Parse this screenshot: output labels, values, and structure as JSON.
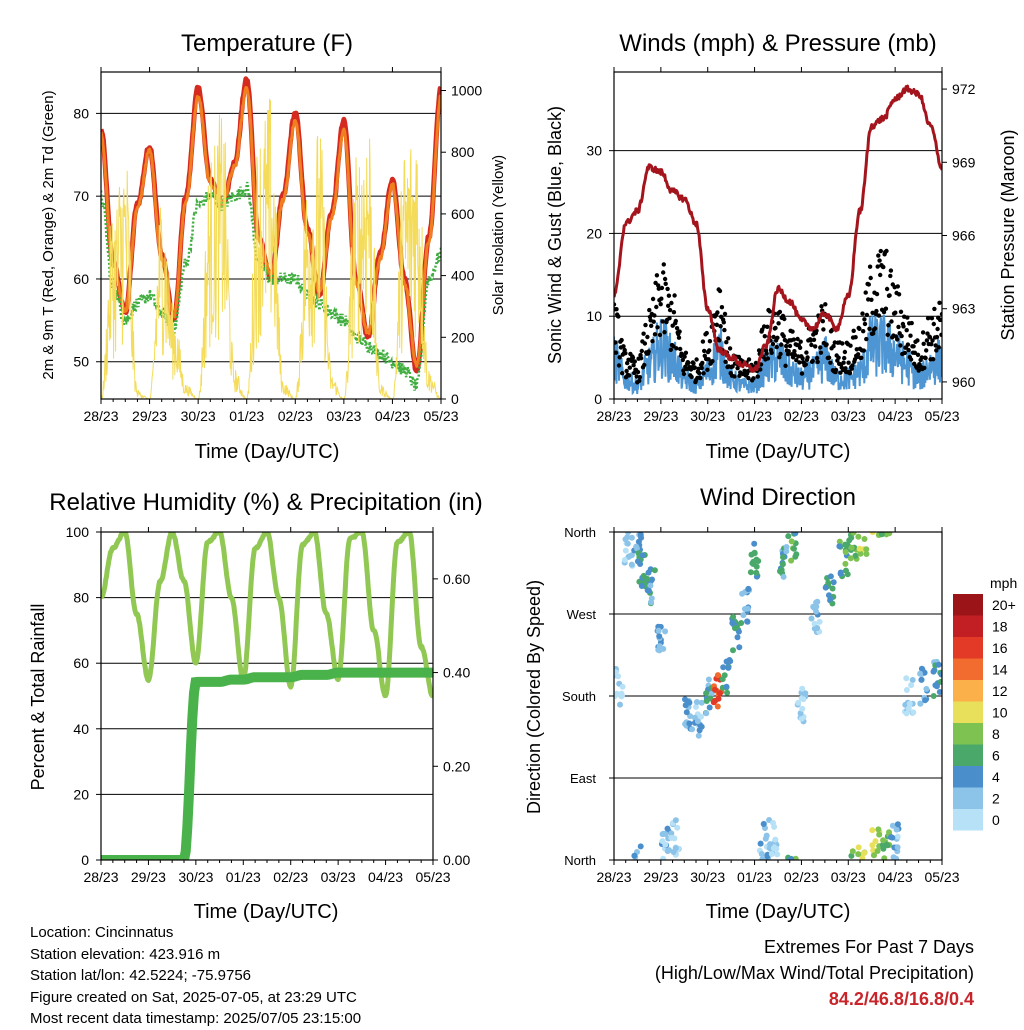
{
  "colors": {
    "temp_2m": "#d42a20",
    "temp_9m": "#f07f20",
    "dewpoint": "#3fae3f",
    "solar": "#f4dc5a",
    "wind": "#4d96d3",
    "gust": "#000000",
    "pressure": "#a3141c",
    "rh": "#90c853",
    "precip": "#4ab24a",
    "extremes": "#c8242a"
  },
  "temperature": {
    "title": "Temperature (F)",
    "xlabel": "Time (Day/UTC)",
    "ylabel_left": "2m & 9m T (Red, Orange) & 2m Td (Green)",
    "ylabel_right": "Solar Insolation (Yellow)",
    "yticks_left": [
      "50",
      "60",
      "70",
      "80"
    ],
    "yticks_right": [
      "0",
      "200",
      "400",
      "600",
      "800",
      "1000"
    ]
  },
  "winds": {
    "title": "Winds (mph) & Pressure (mb)",
    "xlabel": "Time (Day/UTC)",
    "ylabel_left": "Sonic Wind & Gust (Blue, Black)",
    "ylabel_right": "Station Pressure (Maroon)",
    "yticks_left": [
      "0",
      "10",
      "20",
      "30"
    ],
    "yticks_right": [
      "960",
      "963",
      "966",
      "969",
      "972"
    ]
  },
  "humidity": {
    "title": "Relative Humidity (%) & Precipitation (in)",
    "xlabel": "Time (Day/UTC)",
    "ylabel_left": "Percent & Total Rainfall",
    "yticks_left": [
      "0",
      "20",
      "40",
      "60",
      "80",
      "100"
    ],
    "yticks_right": [
      "0.00",
      "0.20",
      "0.40",
      "0.60"
    ]
  },
  "direction": {
    "title": "Wind Direction",
    "xlabel": "Time (Day/UTC)",
    "ylabel_left": "Direction (Colored By Speed)",
    "yticks_left": [
      "North",
      "East",
      "South",
      "West",
      "North"
    ],
    "legend_title": "mph",
    "legend_labels": [
      "0",
      "2",
      "4",
      "6",
      "8",
      "10",
      "12",
      "14",
      "16",
      "18",
      "20+"
    ],
    "legend_colors": [
      "#b7e1f6",
      "#8cc3e8",
      "#4a8fcb",
      "#4aa96a",
      "#7ec251",
      "#e8e05a",
      "#fbb04a",
      "#f26b2f",
      "#e23a26",
      "#c21f24",
      "#9b1418"
    ]
  },
  "xticks": [
    "28/23",
    "29/23",
    "30/23",
    "01/23",
    "02/23",
    "03/23",
    "04/23",
    "05/23"
  ],
  "info": {
    "location": "Location: Cincinnatus",
    "elevation": "Station elevation: 423.916 m",
    "latlon": "Station lat/lon: 42.5224; -75.9756",
    "created": "Figure created on Sat, 2025-07-05, at 23:29 UTC",
    "recent": "Most recent data timestamp: 2025/07/05 23:15:00"
  },
  "extremes": {
    "line1": "Extremes For Past 7 Days",
    "line2": "(High/Low/Max Wind/Total Precipitation)",
    "values": "84.2/46.8/16.8/0.4"
  },
  "chart_data": [
    {
      "type": "line",
      "title": "Temperature (F)",
      "xlabel": "Time (Day/UTC)",
      "ylabel": "2m & 9m T (Red, Orange) & 2m Td (Green)",
      "y2label": "Solar Insolation (Yellow)",
      "ylim": [
        45.5,
        85
      ],
      "y2lim": [
        0,
        1060
      ],
      "x": [
        0,
        0.25,
        0.5,
        0.75,
        1.0,
        1.25,
        1.5,
        1.75,
        2.0,
        2.25,
        2.5,
        2.75,
        3.0,
        3.25,
        3.5,
        3.75,
        4.0,
        4.25,
        4.5,
        4.75,
        5.0,
        5.25,
        5.5,
        5.75,
        6.0,
        6.25,
        6.5,
        6.75,
        7.0
      ],
      "series": [
        {
          "name": "2m T",
          "axis": "left",
          "values": [
            78,
            62,
            56,
            69,
            76,
            63,
            55,
            70,
            83,
            72,
            69,
            74,
            84,
            65,
            60,
            70,
            80,
            66,
            58,
            68,
            79,
            60,
            53,
            63,
            72,
            60,
            49,
            65,
            83
          ]
        },
        {
          "name": "9m T",
          "axis": "left",
          "values": [
            77.5,
            61.5,
            56.2,
            68.5,
            75.5,
            62.5,
            55.5,
            69.5,
            82,
            71.5,
            69.2,
            73.5,
            83,
            64.5,
            60.5,
            69.5,
            79,
            65.5,
            58.3,
            67.5,
            78,
            59.5,
            53.5,
            62.5,
            71.5,
            59.5,
            49.5,
            64.5,
            82
          ]
        },
        {
          "name": "2m Td",
          "axis": "left",
          "values": [
            70,
            59,
            55,
            57,
            58,
            56,
            54,
            62,
            69,
            70,
            69,
            70,
            71,
            62,
            60,
            60,
            60,
            58,
            57,
            56,
            55,
            53,
            52,
            51,
            50,
            49,
            47,
            60,
            63
          ]
        },
        {
          "name": "Solar",
          "axis": "right",
          "values": [
            0,
            650,
            850,
            30,
            0,
            700,
            300,
            50,
            0,
            800,
            950,
            100,
            0,
            900,
            1000,
            60,
            0,
            750,
            900,
            80,
            0,
            800,
            1000,
            50,
            0,
            850,
            950,
            100,
            0
          ]
        }
      ]
    },
    {
      "type": "line",
      "title": "Winds (mph) & Pressure (mb)",
      "xlabel": "Time (Day/UTC)",
      "ylabel": "Sonic Wind & Gust (Blue, Black)",
      "y2label": "Station Pressure (Maroon)",
      "ylim": [
        0,
        39.5
      ],
      "y2lim": [
        959.3,
        972.7
      ],
      "x": [
        0,
        0.25,
        0.5,
        0.75,
        1.0,
        1.25,
        1.5,
        1.75,
        2.0,
        2.25,
        2.5,
        2.75,
        3.0,
        3.25,
        3.5,
        3.75,
        4.0,
        4.25,
        4.5,
        4.75,
        5.0,
        5.25,
        5.5,
        5.75,
        6.0,
        6.25,
        6.5,
        6.75,
        7.0
      ],
      "series": [
        {
          "name": "Sonic Wind",
          "axis": "left",
          "values": [
            6,
            3,
            2,
            5,
            8,
            6,
            3,
            2,
            4,
            7,
            3,
            2,
            2,
            5,
            6,
            4,
            3,
            4,
            6,
            3,
            3,
            4,
            8,
            8,
            7,
            5,
            3,
            5,
            6
          ]
        },
        {
          "name": "Gust",
          "axis": "left",
          "values": [
            10,
            5,
            4,
            9,
            14,
            11,
            5,
            4,
            7,
            13,
            5,
            4,
            4,
            9,
            10,
            7,
            6,
            8,
            10,
            6,
            6,
            8,
            14,
            16,
            12,
            9,
            6,
            9,
            10
          ]
        },
        {
          "name": "Pressure",
          "axis": "right",
          "values": [
            963.5,
            966.5,
            967.0,
            968.8,
            968.6,
            967.8,
            967.5,
            966.5,
            963.0,
            961.3,
            961.0,
            960.7,
            960.5,
            961.5,
            963.8,
            963.3,
            962.5,
            962.2,
            962.8,
            962.2,
            963.5,
            967.0,
            970.5,
            970.8,
            971.6,
            972.0,
            971.8,
            970.5,
            968.8
          ]
        }
      ]
    },
    {
      "type": "line",
      "title": "Relative Humidity (%) & Precipitation (in)",
      "xlabel": "Time (Day/UTC)",
      "ylabel": "Percent & Total Rainfall",
      "ylim": [
        0,
        100
      ],
      "y2lim": [
        0,
        0.7
      ],
      "x": [
        0,
        0.25,
        0.5,
        0.75,
        1.0,
        1.25,
        1.5,
        1.75,
        2.0,
        2.25,
        2.5,
        2.75,
        3.0,
        3.25,
        3.5,
        3.75,
        4.0,
        4.25,
        4.5,
        4.75,
        5.0,
        5.25,
        5.5,
        5.75,
        6.0,
        6.25,
        6.5,
        6.75,
        7.0
      ],
      "series": [
        {
          "name": "Relative Humidity",
          "axis": "left",
          "values": [
            80,
            95,
            100,
            75,
            55,
            85,
            100,
            85,
            60,
            97,
            100,
            80,
            55,
            95,
            100,
            80,
            53,
            96,
            100,
            75,
            55,
            98,
            100,
            70,
            50,
            97,
            100,
            65,
            50
          ]
        },
        {
          "name": "Total Rainfall",
          "axis": "right",
          "values": [
            0,
            0,
            0,
            0,
            0,
            0,
            0,
            0,
            0.38,
            0.38,
            0.38,
            0.385,
            0.385,
            0.39,
            0.39,
            0.39,
            0.39,
            0.395,
            0.395,
            0.395,
            0.4,
            0.4,
            0.4,
            0.4,
            0.4,
            0.4,
            0.4,
            0.4,
            0.4
          ]
        }
      ]
    },
    {
      "type": "scatter",
      "title": "Wind Direction",
      "xlabel": "Time (Day/UTC)",
      "ylabel": "Direction (Colored By Speed)",
      "ylim": [
        0,
        360
      ],
      "series": [
        {
          "name": "Direction",
          "x": [
            0.1,
            0.3,
            0.5,
            0.6,
            0.8,
            1.0,
            1.1,
            1.3,
            1.6,
            1.8,
            2.0,
            2.2,
            2.4,
            2.6,
            2.8,
            3.0,
            3.2,
            3.4,
            3.6,
            3.8,
            4.0,
            4.3,
            4.6,
            4.9,
            5.1,
            5.3,
            5.6,
            5.8,
            6.0,
            6.3,
            6.6,
            6.9
          ],
          "y": [
            190,
            340,
            355,
            320,
            300,
            250,
            20,
            25,
            160,
            155,
            180,
            185,
            200,
            250,
            280,
            330,
            20,
            25,
            330,
            345,
            170,
            270,
            300,
            330,
            350,
            355,
            15,
            12,
            20,
            180,
            190,
            200
          ],
          "speed": [
            2,
            3,
            4,
            6,
            5,
            4,
            3,
            2,
            4,
            3,
            5,
            16,
            6,
            6,
            5,
            6,
            3,
            2,
            5,
            7,
            2,
            3,
            6,
            7,
            8,
            10,
            10,
            8,
            3,
            2,
            4,
            5
          ]
        }
      ]
    }
  ]
}
